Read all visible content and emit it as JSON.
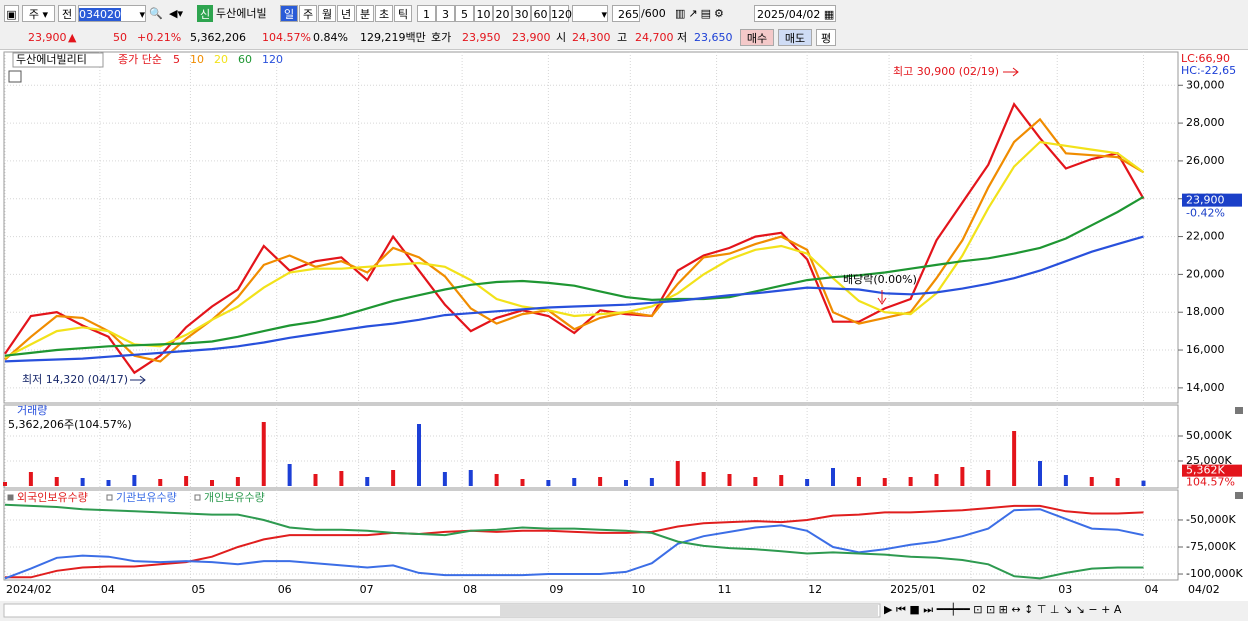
{
  "toolbar": {
    "market": "주",
    "mode": "전",
    "code": "034020",
    "name": "두산에너빌",
    "credit": "신",
    "periods": [
      "일",
      "주",
      "월",
      "년",
      "분",
      "초",
      "틱"
    ],
    "minutes": [
      "1",
      "3",
      "5",
      "10",
      "20",
      "30",
      "60",
      "120"
    ],
    "count": "265",
    "total": "/600",
    "date": "2025/04/02"
  },
  "quote": {
    "price": "23,900",
    "change": "50",
    "rate": "+0.21%",
    "volume": "5,362,206",
    "volume_ratio": "104.57%",
    "turnover": "0.84%",
    "amount": "129,219백만",
    "ask_label": "호가",
    "ask": "23,950",
    "bid": "23,900",
    "open_label": "시",
    "open": "24,300",
    "high_label": "고",
    "high": "24,700",
    "low_label": "저",
    "low": "23,650",
    "buttons": [
      "매수",
      "매도",
      "평"
    ]
  },
  "chart_data": [
    {
      "type": "line",
      "title": "두산에너빌리티",
      "legend_label": "종가 단순",
      "lc": "LC:66,90",
      "hc": "HC:-22,65",
      "annotations": [
        "최고 30,900 (02/19)",
        "최저 14,320 (04/17)",
        "배당락(0.00%)"
      ],
      "last": {
        "value": 23900,
        "label": "23,900"
      },
      "last_rate": "-0.42%",
      "x": [
        0,
        6,
        12,
        18,
        24,
        30,
        36,
        42,
        48,
        54,
        60,
        66,
        72,
        78,
        84,
        90,
        96,
        102,
        108,
        114,
        120,
        126,
        132,
        138,
        144,
        150,
        156,
        162,
        168,
        174,
        180,
        186,
        192,
        198,
        204,
        210,
        216,
        222,
        228,
        234,
        240,
        246,
        252,
        258,
        264
      ],
      "xlim": [
        0,
        272
      ],
      "ylim": [
        13200,
        31600
      ],
      "yticks": [
        {
          "value": 14000,
          "label": "14,000"
        },
        {
          "value": 16000,
          "label": "16,000"
        },
        {
          "value": 18000,
          "label": "18,000"
        },
        {
          "value": 20000,
          "label": "20,000"
        },
        {
          "value": 22000,
          "label": "22,000"
        },
        {
          "value": 24000,
          "label": "24,000"
        },
        {
          "value": 26000,
          "label": "26,000"
        },
        {
          "value": 28000,
          "label": "28,000"
        },
        {
          "value": 30000,
          "label": "30,000"
        }
      ],
      "series": [
        {
          "name": "5",
          "color": "#e3141b",
          "values": [
            15800,
            17800,
            18000,
            17300,
            16700,
            14800,
            15700,
            17200,
            18300,
            19200,
            21500,
            20200,
            20700,
            20900,
            19700,
            22000,
            20200,
            18400,
            17000,
            17700,
            18100,
            17800,
            16900,
            18100,
            17900,
            17800,
            20200,
            21000,
            21400,
            22000,
            22200,
            20800,
            17500,
            17500,
            18200,
            18700,
            21800,
            23800,
            25800,
            29000,
            27200,
            25600,
            26100,
            26400,
            24000
          ]
        },
        {
          "name": "10",
          "color": "#f08c00",
          "values": [
            15500,
            16700,
            17800,
            17700,
            17000,
            15700,
            15400,
            16600,
            17600,
            18800,
            20500,
            21000,
            20400,
            20700,
            20100,
            21400,
            20900,
            19900,
            18200,
            17400,
            17900,
            18100,
            17100,
            17700,
            18000,
            17800,
            19500,
            20900,
            21100,
            21600,
            22000,
            21300,
            18000,
            17400,
            17700,
            18000,
            19800,
            21800,
            24600,
            27000,
            28200,
            26400,
            26300,
            26200,
            25400
          ]
        },
        {
          "name": "20",
          "color": "#f2e21a",
          "values": [
            15600,
            16300,
            17000,
            17200,
            17000,
            16300,
            16200,
            16800,
            17600,
            18300,
            19300,
            20100,
            20300,
            20300,
            20400,
            20500,
            20600,
            20400,
            19700,
            18700,
            18300,
            18100,
            17800,
            17900,
            18000,
            18300,
            19000,
            20000,
            20800,
            21300,
            21500,
            21100,
            19800,
            18600,
            18000,
            17900,
            19000,
            21000,
            23500,
            25700,
            27000,
            26800,
            26600,
            26400,
            25400
          ]
        },
        {
          "name": "60",
          "color": "#1e9632",
          "values": [
            15700,
            15850,
            16000,
            16100,
            16200,
            16250,
            16300,
            16350,
            16450,
            16700,
            17000,
            17300,
            17500,
            17800,
            18200,
            18600,
            18900,
            19200,
            19450,
            19600,
            19650,
            19550,
            19400,
            19100,
            18800,
            18650,
            18700,
            18700,
            18800,
            19100,
            19400,
            19700,
            19850,
            19950,
            20100,
            20300,
            20500,
            20700,
            20850,
            21100,
            21400,
            21900,
            22600,
            23300,
            24100
          ]
        },
        {
          "name": "120",
          "color": "#2850dc",
          "values": [
            15400,
            15450,
            15500,
            15550,
            15650,
            15750,
            15850,
            15950,
            16050,
            16200,
            16400,
            16650,
            16850,
            17050,
            17250,
            17400,
            17600,
            17850,
            17950,
            18050,
            18150,
            18250,
            18300,
            18350,
            18400,
            18500,
            18600,
            18750,
            18900,
            19000,
            19150,
            19300,
            19250,
            19200,
            19000,
            18950,
            19050,
            19250,
            19500,
            19800,
            20200,
            20700,
            21200,
            21600,
            22000
          ]
        }
      ]
    },
    {
      "type": "bar",
      "title": "거래량",
      "summary": "5,362,206주(104.57%)",
      "up_color": "#e3141b",
      "down_color": "#1c3fd6",
      "last": {
        "value": 5362,
        "label": "5,362K"
      },
      "last_rate": "104.57%",
      "x": [
        0,
        6,
        12,
        18,
        24,
        30,
        36,
        42,
        48,
        54,
        60,
        66,
        72,
        78,
        84,
        90,
        96,
        102,
        108,
        114,
        120,
        126,
        132,
        138,
        144,
        150,
        156,
        162,
        168,
        174,
        180,
        186,
        192,
        198,
        204,
        210,
        216,
        222,
        228,
        234,
        240,
        246,
        252,
        258,
        264
      ],
      "xlim": [
        0,
        272
      ],
      "ylim": [
        0,
        81000
      ],
      "yticks": [
        {
          "value": 25000,
          "label": "25,000K"
        },
        {
          "value": 50000,
          "label": "50,000K"
        }
      ],
      "values": [
        4000,
        14000,
        9000,
        8000,
        6000,
        11000,
        7000,
        10000,
        6000,
        9000,
        64000,
        22000,
        12000,
        15000,
        9000,
        16000,
        62000,
        14000,
        16000,
        12000,
        7000,
        6000,
        8000,
        9000,
        6000,
        8000,
        25000,
        14000,
        12000,
        9000,
        11000,
        7000,
        18000,
        9000,
        8000,
        9000,
        12000,
        19000,
        16000,
        55000,
        25000,
        11000,
        9000,
        8000,
        5362
      ]
    },
    {
      "type": "line",
      "x": [
        0,
        6,
        12,
        18,
        24,
        30,
        36,
        42,
        48,
        54,
        60,
        66,
        72,
        78,
        84,
        90,
        96,
        102,
        108,
        114,
        120,
        126,
        132,
        138,
        144,
        150,
        156,
        162,
        168,
        174,
        180,
        186,
        192,
        198,
        204,
        210,
        216,
        222,
        228,
        234,
        240,
        246,
        252,
        258,
        264
      ],
      "xlim": [
        0,
        272
      ],
      "ylim": [
        -108300,
        -34300
      ],
      "yticks": [
        {
          "value": -100000,
          "label": "-100,000K"
        },
        {
          "value": -75000,
          "label": "-75,000K"
        },
        {
          "value": -50000,
          "label": "-50,000K"
        }
      ],
      "xticks": [
        {
          "value": 0,
          "label": "2024/02"
        },
        {
          "value": 22,
          "label": "04"
        },
        {
          "value": 43,
          "label": "05"
        },
        {
          "value": 63,
          "label": "06"
        },
        {
          "value": 82,
          "label": "07"
        },
        {
          "value": 106,
          "label": "08"
        },
        {
          "value": 126,
          "label": "09"
        },
        {
          "value": 145,
          "label": "10"
        },
        {
          "value": 165,
          "label": "11"
        },
        {
          "value": 186,
          "label": "12"
        },
        {
          "value": 205,
          "label": "2025/01"
        },
        {
          "value": 224,
          "label": "02"
        },
        {
          "value": 244,
          "label": "03"
        },
        {
          "value": 264,
          "label": "04"
        }
      ],
      "end_label": "04/02",
      "series": [
        {
          "name": "외국인보유수량",
          "color": "#e01e1e",
          "values": [
            -103000,
            -103000,
            -97000,
            -94000,
            -93000,
            -93000,
            -91000,
            -89000,
            -84000,
            -75000,
            -68000,
            -64000,
            -64000,
            -64000,
            -64000,
            -62000,
            -63000,
            -61000,
            -60000,
            -61000,
            -60000,
            -60000,
            -61000,
            -62000,
            -62000,
            -61000,
            -56000,
            -53000,
            -52000,
            -51000,
            -52000,
            -50000,
            -46000,
            -45000,
            -43000,
            -43000,
            -42000,
            -41000,
            -39000,
            -37000,
            -37000,
            -42000,
            -44000,
            -44000,
            -43000
          ]
        },
        {
          "name": "기관보유수량",
          "color": "#3c6ee6",
          "values": [
            -104000,
            -95000,
            -85000,
            -83000,
            -84000,
            -88000,
            -89000,
            -88000,
            -89000,
            -91000,
            -88000,
            -88000,
            -90000,
            -92000,
            -94000,
            -92000,
            -99000,
            -101000,
            -101000,
            -101000,
            -101000,
            -100000,
            -100000,
            -100000,
            -98000,
            -90000,
            -72000,
            -65000,
            -61000,
            -57000,
            -55000,
            -60000,
            -75000,
            -80000,
            -77000,
            -73000,
            -70000,
            -65000,
            -58000,
            -41000,
            -40000,
            -49000,
            -58000,
            -59000,
            -64000
          ]
        },
        {
          "name": "개인보유수량",
          "color": "#2e9a50",
          "values": [
            -36000,
            -37000,
            -38000,
            -40000,
            -41000,
            -42000,
            -43000,
            -44000,
            -45000,
            -45000,
            -50000,
            -57000,
            -59000,
            -59000,
            -60000,
            -62000,
            -63000,
            -64000,
            -60000,
            -59000,
            -57000,
            -58000,
            -58000,
            -59000,
            -60000,
            -62000,
            -70000,
            -74000,
            -76000,
            -77000,
            -79000,
            -81000,
            -80000,
            -81000,
            -82000,
            -84000,
            -85000,
            -87000,
            -91000,
            -102000,
            -104000,
            -99000,
            -95000,
            -94000,
            -94000
          ]
        }
      ]
    }
  ]
}
